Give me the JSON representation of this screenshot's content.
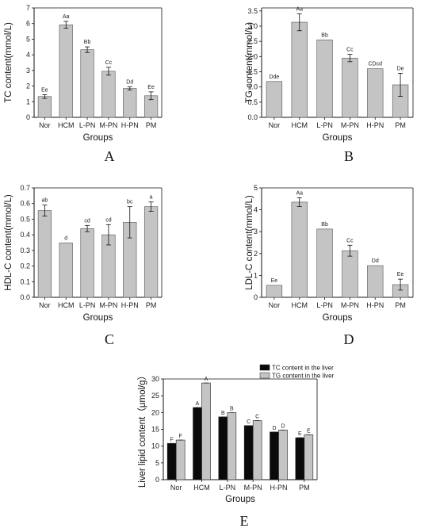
{
  "colors": {
    "bar_gray": "#c4c4c4",
    "bar_black": "#0a0a0a",
    "axis": "#111111"
  },
  "chart_data": [
    {
      "panel": "A",
      "type": "bar",
      "categories": [
        "Nor",
        "HCM",
        "L-PN",
        "M-PN",
        "H-PN",
        "PM"
      ],
      "values": [
        1.33,
        5.92,
        4.33,
        2.95,
        1.85,
        1.38
      ],
      "errors": [
        0.12,
        0.22,
        0.18,
        0.25,
        0.1,
        0.25
      ],
      "sig": [
        "Ee",
        "Aa",
        "Bb",
        "Cc",
        "Dd",
        "Ee"
      ],
      "xlabel": "Groups",
      "ylabel": "TC content(mmol/L)",
      "ylim": [
        0,
        7
      ],
      "yticks": [
        "0",
        "1",
        "2",
        "3",
        "4",
        "5",
        "6",
        "7"
      ]
    },
    {
      "panel": "B",
      "type": "bar",
      "categories": [
        "Nor",
        "HCM",
        "L-PN",
        "M-PN",
        "H-PN",
        "PM"
      ],
      "values": [
        1.18,
        3.13,
        2.55,
        1.95,
        1.6,
        1.07
      ],
      "errors": [
        0.0,
        0.28,
        0.0,
        0.12,
        0.0,
        0.38
      ],
      "sig": [
        "Dde",
        "Aa",
        "Bb",
        "Cc",
        "CDcd",
        "De"
      ],
      "xlabel": "Groups",
      "ylabel": "TG content(mmol/L)",
      "ylim": [
        0,
        3.6
      ],
      "yticks": [
        "0.0",
        "0.5",
        "1.0",
        "1.5",
        "2.0",
        "2.5",
        "3.0",
        "3.5"
      ]
    },
    {
      "panel": "C",
      "type": "bar",
      "categories": [
        "Nor",
        "HCM",
        "L-PN",
        "M-PN",
        "H-PN",
        "PM"
      ],
      "values": [
        0.555,
        0.348,
        0.44,
        0.4,
        0.48,
        0.58
      ],
      "errors": [
        0.035,
        0.0,
        0.02,
        0.065,
        0.1,
        0.03
      ],
      "sig": [
        "ab",
        "d",
        "cd",
        "cd",
        "bc",
        "a"
      ],
      "xlabel": "Groups",
      "ylabel": "HDL-C content(mmol/L)",
      "ylim": [
        0,
        0.7
      ],
      "yticks": [
        "0.0",
        "0.1",
        "0.2",
        "0.3",
        "0.4",
        "0.5",
        "0.6",
        "0.7"
      ]
    },
    {
      "panel": "D",
      "type": "bar",
      "categories": [
        "Nor",
        "HCM",
        "L-PN",
        "M-PN",
        "H-PN",
        "PM"
      ],
      "values": [
        0.55,
        4.35,
        3.12,
        2.13,
        1.45,
        0.58
      ],
      "errors": [
        0.0,
        0.2,
        0.0,
        0.25,
        0.0,
        0.25
      ],
      "sig": [
        "Ee",
        "Aa",
        "Bb",
        "Cc",
        "Dd",
        "Ee"
      ],
      "xlabel": "Groups",
      "ylabel": "LDL-C content(mmol/L)",
      "ylim": [
        0,
        5
      ],
      "yticks": [
        "0",
        "1",
        "2",
        "3",
        "4",
        "5"
      ]
    },
    {
      "panel": "E",
      "type": "bar",
      "categories": [
        "Nor",
        "HCM",
        "L-PN",
        "M-PN",
        "H-PN",
        "PM"
      ],
      "series": [
        {
          "name": "TC content in the liver",
          "values": [
            10.8,
            21.5,
            18.7,
            16.1,
            14.2,
            12.5
          ],
          "sig": [
            "F",
            "A",
            "B",
            "C",
            "D",
            "E"
          ]
        },
        {
          "name": "TG content in the liver",
          "values": [
            11.8,
            28.8,
            20.0,
            17.6,
            14.8,
            13.4
          ],
          "sig": [
            "F",
            "A",
            "B",
            "C",
            "D",
            "E"
          ]
        }
      ],
      "xlabel": "Groups",
      "ylabel": "Liver lipid content（μmol/g）",
      "ylim": [
        0,
        30
      ],
      "yticks": [
        "0",
        "5",
        "10",
        "15",
        "20",
        "25",
        "30"
      ],
      "legend": "top-right"
    }
  ]
}
